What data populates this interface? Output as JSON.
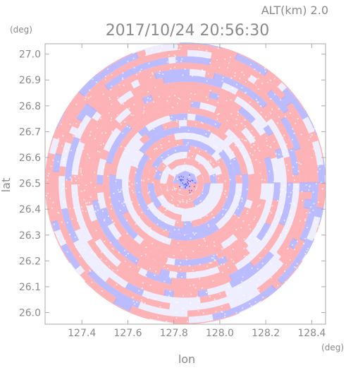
{
  "header": {
    "altitude_label": "ALT(km)  2.0",
    "timestamp": "2017/10/24  20:56:30"
  },
  "chart_data": {
    "type": "heatmap",
    "title": "2017/10/24  20:56:30",
    "subtitle": "ALT(km)  2.0",
    "xlabel": "lon",
    "ylabel": "lat",
    "x_unit": "(deg)",
    "y_unit": "(deg)",
    "xlim": [
      127.24,
      128.46
    ],
    "ylim": [
      25.955,
      27.04
    ],
    "x_ticks": [
      127.4,
      127.6,
      127.8,
      128.0,
      128.2,
      128.4
    ],
    "x_tick_labels": [
      "127.4",
      "127.6",
      "127.8",
      "128.0",
      "128.2",
      "128.4"
    ],
    "y_ticks": [
      26.0,
      26.1,
      26.2,
      26.3,
      26.4,
      26.5,
      26.6,
      26.7,
      26.8,
      26.9,
      27.0
    ],
    "y_tick_labels": [
      "26.0",
      "26.1",
      "26.2",
      "26.3",
      "26.4",
      "26.5",
      "26.6",
      "26.7",
      "26.8",
      "26.9",
      "27.0"
    ],
    "radar_center": [
      127.85,
      26.5
    ],
    "radar_range_deg_lat": 0.545,
    "grid": false,
    "colors": {
      "positive": "#ffa8a8",
      "negative": "#b2b2ff",
      "neutral": "#eeeeff",
      "axis": "#aaaaaa",
      "text": "#888888"
    }
  }
}
